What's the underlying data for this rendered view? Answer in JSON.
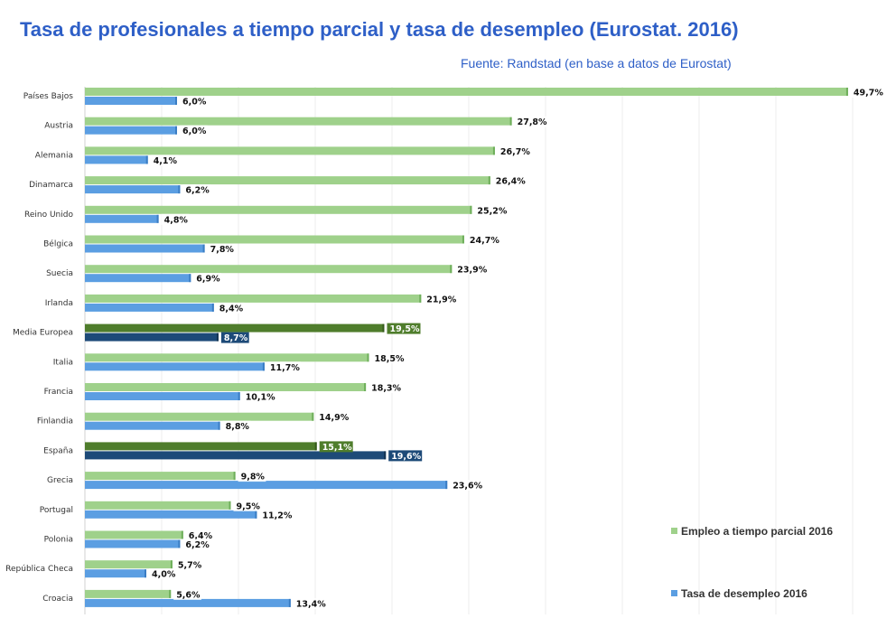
{
  "chart_data": {
    "type": "bar",
    "orientation": "horizontal",
    "title": "Tasa de profesionales a tiempo parcial y tasa de desempleo (Eurostat. 2016)",
    "subtitle": "Fuente: Randstad (en base a datos de Eurostat)",
    "categories": [
      "Países Bajos",
      "Austria",
      "Alemania",
      "Dinamarca",
      "Reino Unido",
      "Bélgica",
      "Suecia",
      "Irlanda",
      "Media Europea",
      "Italia",
      "Francia",
      "Finlandia",
      "España",
      "Grecia",
      "Portugal",
      "Polonia",
      "República Checa",
      "Croacia"
    ],
    "highlighted": [
      "Media Europea",
      "España"
    ],
    "series": [
      {
        "name": "Empleo a tiempo parcial 2016",
        "color": "#9fd18b",
        "highlight_color": "#4f7d2c",
        "values": [
          49.7,
          27.8,
          26.7,
          26.4,
          25.2,
          24.7,
          23.9,
          21.9,
          19.5,
          18.5,
          18.3,
          14.9,
          15.1,
          9.8,
          9.5,
          6.4,
          5.7,
          5.6
        ],
        "labels": [
          "49,7%",
          "27,8%",
          "26,7%",
          "26,4%",
          "25,2%",
          "24,7%",
          "23,9%",
          "21,9%",
          "19,5%",
          "18,5%",
          "18,3%",
          "14,9%",
          "15,1%",
          "9,8%",
          "9,5%",
          "6,4%",
          "5,7%",
          "5,6%"
        ]
      },
      {
        "name": "Tasa de desempleo 2016",
        "color": "#5b9ee2",
        "highlight_color": "#1d4a78",
        "values": [
          6.0,
          6.0,
          4.1,
          6.2,
          4.8,
          7.8,
          6.9,
          8.4,
          8.7,
          11.7,
          10.1,
          8.8,
          19.6,
          23.6,
          11.2,
          6.2,
          4.0,
          13.4
        ],
        "labels": [
          "6,0%",
          "6,0%",
          "4,1%",
          "6,2%",
          "4,8%",
          "7,8%",
          "6,9%",
          "8,4%",
          "8,7%",
          "11,7%",
          "10,1%",
          "8,8%",
          "19,6%",
          "23,6%",
          "11,2%",
          "6,2%",
          "4,0%",
          "13,4%"
        ]
      }
    ],
    "xlim": [
      0,
      50
    ],
    "grid": true,
    "legend_position": "right"
  }
}
